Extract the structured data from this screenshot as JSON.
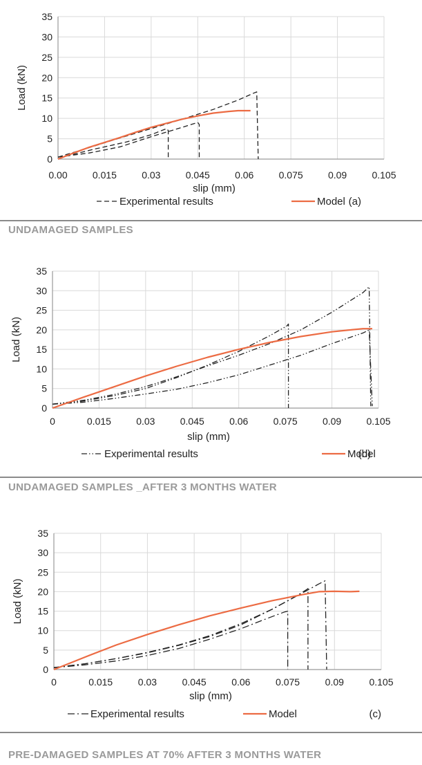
{
  "colors": {
    "model": "#ec6b43",
    "experimental": "#222222",
    "grid": "#d9d9d9",
    "axis": "#9a9a9a",
    "separator": "#8a8a8a",
    "section_text": "#9a9a9a"
  },
  "chart_data": [
    {
      "type": "line",
      "xlabel": "slip (mm)",
      "ylabel": "Load (kN)",
      "xlim": [
        0,
        0.105
      ],
      "ylim": [
        0,
        35
      ],
      "xticks": [
        0,
        0.015,
        0.03,
        0.045,
        0.06,
        0.075,
        0.09,
        0.105
      ],
      "xtick_labels": [
        "0.00",
        "0.015",
        "0.03",
        "0.045",
        "0.06",
        "0.075",
        "0.09",
        "0.105"
      ],
      "yticks": [
        0,
        5,
        10,
        15,
        20,
        25,
        30,
        35
      ],
      "ytick_labels": [
        "0",
        "5",
        "10",
        "15",
        "20",
        "25",
        "30",
        "35"
      ],
      "panel_label": "(a)",
      "section_title": "UNDAMAGED SAMPLES",
      "legend": [
        "Experimental results",
        "Model"
      ],
      "series": [
        {
          "name": "Experimental results",
          "style": "dashed",
          "x": [
            0,
            0.004,
            0.012,
            0.022,
            0.03,
            0.035,
            0.0355,
            0.0355
          ],
          "y": [
            0.5,
            1.0,
            2.5,
            4.2,
            6.0,
            7.5,
            7.0,
            0
          ]
        },
        {
          "name": "Experimental results",
          "style": "dashed",
          "x": [
            0,
            0.01,
            0.02,
            0.03,
            0.04,
            0.045,
            0.0455,
            0.0455
          ],
          "y": [
            0.5,
            1.5,
            3.0,
            5.5,
            7.8,
            9.0,
            8.5,
            0
          ]
        },
        {
          "name": "Experimental results",
          "style": "dashed",
          "x": [
            0,
            0.01,
            0.02,
            0.03,
            0.04,
            0.05,
            0.058,
            0.063,
            0.064,
            0.0645
          ],
          "y": [
            0.5,
            2.8,
            5.2,
            7.5,
            9.8,
            12.2,
            14.5,
            16.2,
            16.5,
            0
          ]
        },
        {
          "name": "Model",
          "style": "solid",
          "x": [
            0,
            0.005,
            0.01,
            0.015,
            0.02,
            0.025,
            0.03,
            0.035,
            0.04,
            0.045,
            0.05,
            0.055,
            0.058,
            0.062
          ],
          "y": [
            0,
            1.5,
            2.9,
            4.1,
            5.3,
            6.6,
            7.8,
            8.8,
            9.8,
            10.6,
            11.3,
            11.7,
            11.9,
            11.9
          ]
        }
      ]
    },
    {
      "type": "line",
      "xlabel": "slip (mm)",
      "ylabel": "Load (kN)",
      "xlim": [
        0,
        0.105
      ],
      "ylim": [
        0,
        35
      ],
      "xticks": [
        0,
        0.015,
        0.03,
        0.045,
        0.06,
        0.075,
        0.09,
        0.105
      ],
      "xtick_labels": [
        "0",
        "0.015",
        "0.03",
        "0.045",
        "0.06",
        "0.075",
        "0.09",
        "0.105"
      ],
      "yticks": [
        0,
        5,
        10,
        15,
        20,
        25,
        30,
        35
      ],
      "ytick_labels": [
        "0",
        "5",
        "10",
        "15",
        "20",
        "25",
        "30",
        "35"
      ],
      "panel_label": "(b)",
      "section_title": "UNDAMAGED SAMPLES _AFTER 3 MONTHS WATER",
      "legend": [
        "Experimental results",
        "Model"
      ],
      "series": [
        {
          "name": "Experimental results",
          "style": "dashdotdot",
          "x": [
            0,
            0.01,
            0.02,
            0.03,
            0.04,
            0.05,
            0.06,
            0.07,
            0.0755,
            0.076,
            0.076
          ],
          "y": [
            1.0,
            1.8,
            3.2,
            5.0,
            7.8,
            11.0,
            14.5,
            18.5,
            21.0,
            21.5,
            0
          ]
        },
        {
          "name": "Experimental results",
          "style": "dashdotdot",
          "x": [
            0,
            0.01,
            0.02,
            0.03,
            0.04,
            0.05,
            0.06,
            0.07,
            0.08,
            0.09,
            0.1,
            0.102,
            0.1025
          ],
          "y": [
            1.0,
            2.0,
            3.5,
            5.5,
            8.0,
            10.8,
            13.5,
            16.5,
            20.0,
            24.5,
            29.5,
            31.0,
            0.5
          ]
        },
        {
          "name": "Experimental results",
          "style": "dashdotdot",
          "x": [
            0,
            0.01,
            0.02,
            0.03,
            0.04,
            0.05,
            0.06,
            0.07,
            0.08,
            0.09,
            0.1,
            0.102,
            0.103
          ],
          "y": [
            1.0,
            1.5,
            2.5,
            3.6,
            4.8,
            6.5,
            8.5,
            11.0,
            13.5,
            16.5,
            19.2,
            20.0,
            0.5
          ]
        },
        {
          "name": "Model",
          "style": "solid",
          "x": [
            0,
            0.01,
            0.02,
            0.03,
            0.04,
            0.05,
            0.06,
            0.07,
            0.08,
            0.09,
            0.095,
            0.1,
            0.103
          ],
          "y": [
            0,
            2.8,
            5.5,
            8.2,
            10.7,
            13.0,
            15.0,
            16.8,
            18.3,
            19.5,
            19.9,
            20.3,
            20.3
          ]
        }
      ]
    },
    {
      "type": "line",
      "xlabel": "slip (mm)",
      "ylabel": "Load (kN)",
      "xlim": [
        0,
        0.105
      ],
      "ylim": [
        0,
        35
      ],
      "xticks": [
        0,
        0.015,
        0.03,
        0.045,
        0.06,
        0.075,
        0.09,
        0.105
      ],
      "xtick_labels": [
        "0",
        "0.015",
        "0.03",
        "0.045",
        "0.06",
        "0.075",
        "0.09",
        "0.105"
      ],
      "yticks": [
        0,
        5,
        10,
        15,
        20,
        25,
        30,
        35
      ],
      "ytick_labels": [
        "0",
        "5",
        "10",
        "15",
        "20",
        "25",
        "30",
        "35"
      ],
      "panel_label": "(c)",
      "section_title": "PRE-DAMAGED SAMPLES AT 70%  AFTER 3 MONTHS WATER",
      "legend": [
        "Experimental results",
        "Model"
      ],
      "series": [
        {
          "name": "Experimental results",
          "style": "dashdot",
          "x": [
            0,
            0.01,
            0.02,
            0.03,
            0.04,
            0.05,
            0.06,
            0.068,
            0.074,
            0.075,
            0.075
          ],
          "y": [
            0.5,
            1.2,
            2.2,
            3.6,
            5.4,
            7.8,
            10.5,
            13.0,
            14.8,
            15.0,
            0
          ]
        },
        {
          "name": "Experimental results",
          "style": "dashdot",
          "x": [
            0,
            0.01,
            0.02,
            0.03,
            0.04,
            0.05,
            0.06,
            0.07,
            0.078,
            0.081,
            0.0815,
            0.0815
          ],
          "y": [
            0.5,
            1.5,
            2.8,
            4.3,
            6.2,
            8.5,
            11.5,
            15.5,
            19.0,
            20.5,
            20.8,
            0
          ]
        },
        {
          "name": "Experimental results",
          "style": "dashdot",
          "x": [
            0,
            0.01,
            0.02,
            0.03,
            0.04,
            0.05,
            0.06,
            0.07,
            0.08,
            0.085,
            0.087,
            0.0875
          ],
          "y": [
            0.5,
            1.5,
            2.8,
            4.4,
            6.3,
            8.7,
            11.8,
            15.5,
            19.8,
            22.0,
            22.8,
            0
          ]
        },
        {
          "name": "Model",
          "style": "solid",
          "x": [
            0,
            0.01,
            0.02,
            0.03,
            0.04,
            0.05,
            0.06,
            0.07,
            0.08,
            0.085,
            0.09,
            0.095,
            0.098
          ],
          "y": [
            0,
            3.2,
            6.3,
            9.0,
            11.5,
            13.8,
            15.8,
            17.7,
            19.3,
            20.0,
            20.1,
            20.0,
            20.1
          ]
        }
      ]
    }
  ]
}
